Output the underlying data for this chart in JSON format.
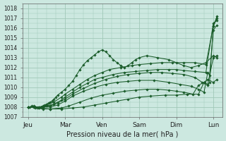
{
  "xlabel": "Pression niveau de la mer( hPa )",
  "ylim": [
    1007,
    1018.5
  ],
  "yticks": [
    1007,
    1008,
    1009,
    1010,
    1011,
    1012,
    1013,
    1014,
    1015,
    1016,
    1017,
    1018
  ],
  "xtick_labels": [
    "Jeu",
    "Mar",
    "Ven",
    "Sam",
    "Dim",
    "Lun"
  ],
  "xtick_positions": [
    0,
    1.0,
    2.0,
    3.0,
    4.0,
    5.0
  ],
  "bg_color": "#cce8e0",
  "grid_color": "#a0c8b8",
  "line_color": "#1a5c2a",
  "marker": "D",
  "markersize": 1.8,
  "linewidth": 0.75,
  "series": [
    {
      "x": [
        0.0,
        0.05,
        0.1,
        0.15,
        0.2,
        0.25,
        0.3,
        0.35,
        0.4,
        0.45,
        0.5,
        0.55,
        0.6,
        0.65,
        0.7,
        0.75,
        0.8,
        0.9,
        1.0,
        1.1,
        1.2,
        1.3,
        1.4,
        1.5,
        1.6,
        1.7,
        1.8,
        1.9,
        2.0,
        2.1,
        2.2,
        2.3,
        2.4,
        2.5,
        2.6,
        2.7,
        2.8,
        2.9,
        3.0,
        3.2,
        3.5,
        3.8,
        4.0,
        4.2,
        4.4,
        4.6,
        4.8,
        5.0,
        5.1
      ],
      "y": [
        1008.0,
        1008.0,
        1008.1,
        1008.1,
        1008.0,
        1007.9,
        1007.9,
        1008.0,
        1008.1,
        1008.2,
        1008.3,
        1008.4,
        1008.5,
        1008.6,
        1008.8,
        1009.0,
        1009.2,
        1009.5,
        1009.8,
        1010.2,
        1010.6,
        1011.2,
        1011.8,
        1012.3,
        1012.7,
        1013.0,
        1013.3,
        1013.6,
        1013.8,
        1013.6,
        1013.2,
        1012.8,
        1012.5,
        1012.2,
        1012.0,
        1012.2,
        1012.5,
        1012.8,
        1013.0,
        1013.2,
        1013.0,
        1012.8,
        1012.5,
        1012.2,
        1012.0,
        1012.2,
        1012.5,
        1013.2,
        1013.0
      ]
    },
    {
      "x": [
        0.0,
        0.15,
        0.3,
        0.5,
        0.7,
        0.9,
        1.0,
        1.2,
        1.4,
        1.6,
        1.8,
        2.0,
        2.2,
        2.5,
        2.8,
        3.0,
        3.3,
        3.6,
        3.9,
        4.2,
        4.5,
        4.8,
        5.0,
        5.1
      ],
      "y": [
        1008.0,
        1008.0,
        1008.0,
        1008.2,
        1008.5,
        1009.0,
        1009.3,
        1009.8,
        1010.3,
        1010.8,
        1011.2,
        1011.5,
        1011.8,
        1012.0,
        1012.2,
        1012.3,
        1012.4,
        1012.5,
        1012.5,
        1012.5,
        1012.5,
        1012.3,
        1016.2,
        1017.2
      ]
    },
    {
      "x": [
        0.0,
        0.15,
        0.3,
        0.5,
        0.7,
        0.9,
        1.0,
        1.2,
        1.4,
        1.6,
        1.8,
        2.0,
        2.3,
        2.6,
        2.9,
        3.2,
        3.5,
        3.8,
        4.0,
        4.2,
        4.5,
        4.8,
        5.0,
        5.1
      ],
      "y": [
        1008.0,
        1008.0,
        1008.0,
        1008.1,
        1008.3,
        1008.7,
        1009.0,
        1009.5,
        1010.0,
        1010.4,
        1010.8,
        1011.0,
        1011.3,
        1011.5,
        1011.6,
        1011.7,
        1011.8,
        1011.8,
        1011.8,
        1011.7,
        1011.6,
        1011.5,
        1016.5,
        1016.8
      ]
    },
    {
      "x": [
        0.0,
        0.2,
        0.4,
        0.6,
        0.8,
        1.0,
        1.2,
        1.5,
        1.8,
        2.1,
        2.4,
        2.7,
        3.0,
        3.3,
        3.6,
        3.9,
        4.2,
        4.5,
        4.7,
        4.85,
        4.9,
        5.0,
        5.1
      ],
      "y": [
        1008.0,
        1008.0,
        1008.0,
        1008.1,
        1008.4,
        1008.8,
        1009.3,
        1009.9,
        1010.4,
        1010.8,
        1011.1,
        1011.3,
        1011.4,
        1011.5,
        1011.5,
        1011.4,
        1011.3,
        1011.0,
        1010.5,
        1010.2,
        1010.5,
        1016.2,
        1017.0
      ]
    },
    {
      "x": [
        0.0,
        0.2,
        0.4,
        0.6,
        0.8,
        1.0,
        1.2,
        1.5,
        1.8,
        2.1,
        2.4,
        2.7,
        3.0,
        3.4,
        3.8,
        4.1,
        4.4,
        4.6,
        4.75,
        4.85,
        4.9,
        5.0,
        5.1
      ],
      "y": [
        1008.0,
        1008.0,
        1008.0,
        1008.0,
        1008.2,
        1008.6,
        1009.1,
        1009.6,
        1010.0,
        1010.3,
        1010.5,
        1010.6,
        1010.7,
        1010.7,
        1010.5,
        1010.3,
        1010.1,
        1009.8,
        1009.5,
        1011.5,
        1011.2,
        1015.8,
        1016.3
      ]
    },
    {
      "x": [
        0.0,
        0.2,
        0.4,
        0.6,
        0.9,
        1.1,
        1.4,
        1.7,
        2.0,
        2.3,
        2.6,
        2.9,
        3.2,
        3.5,
        3.8,
        4.0,
        4.2,
        4.45,
        4.6,
        4.75,
        4.85,
        5.0,
        5.1
      ],
      "y": [
        1008.0,
        1007.9,
        1007.8,
        1007.8,
        1007.9,
        1008.1,
        1008.5,
        1008.9,
        1009.2,
        1009.4,
        1009.6,
        1009.7,
        1009.8,
        1009.8,
        1009.7,
        1009.6,
        1009.5,
        1009.3,
        1010.2,
        1010.5,
        1010.3,
        1013.0,
        1013.2
      ]
    },
    {
      "x": [
        0.0,
        0.3,
        0.6,
        0.9,
        1.2,
        1.5,
        1.8,
        2.1,
        2.4,
        2.7,
        3.0,
        3.3,
        3.7,
        4.0,
        4.3,
        4.6,
        4.75,
        4.85,
        5.0,
        5.1
      ],
      "y": [
        1008.0,
        1007.9,
        1007.8,
        1007.8,
        1007.9,
        1008.0,
        1008.2,
        1008.4,
        1008.6,
        1008.8,
        1009.0,
        1009.1,
        1009.2,
        1009.2,
        1009.3,
        1009.3,
        1010.5,
        1010.8,
        1010.5,
        1010.8
      ]
    }
  ]
}
